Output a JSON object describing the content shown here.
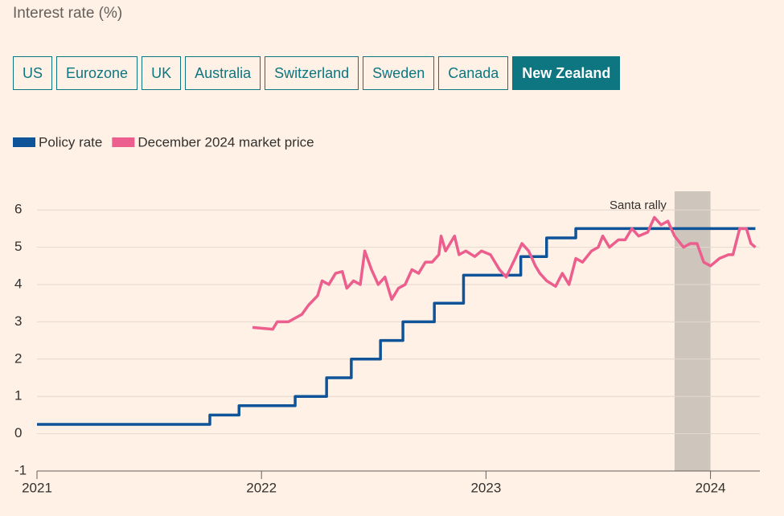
{
  "title": "Interest rate (%)",
  "tabs": {
    "items": [
      "US",
      "Eurozone",
      "UK",
      "Australia",
      "Switzerland",
      "Sweden",
      "Canada",
      "New Zealand"
    ],
    "selected": "New Zealand"
  },
  "chart_data": {
    "type": "line",
    "xlim": [
      2021,
      2024.22
    ],
    "xticks": [
      2021,
      2022,
      2023,
      2024
    ],
    "ylim": [
      -1,
      6.5
    ],
    "yticks": [
      -1,
      0,
      1,
      2,
      3,
      4,
      5,
      6
    ],
    "grid": true,
    "shaded_span": [
      2023.84,
      2024.0
    ],
    "annotation": "Santa rally",
    "series": [
      {
        "name": "Policy rate",
        "color": "#0f5499",
        "step": "post",
        "x": [
          2021,
          2021.77,
          2021.9,
          2022.15,
          2022.29,
          2022.4,
          2022.53,
          2022.63,
          2022.77,
          2022.9,
          2023.155,
          2023.27,
          2023.4,
          2024.2
        ],
        "values": [
          0.25,
          0.5,
          0.75,
          1,
          1.5,
          2,
          2.5,
          3,
          3.5,
          4.25,
          4.75,
          5.25,
          5.5,
          5.5
        ]
      },
      {
        "name": "December 2024 market price",
        "color": "#eb5e8d",
        "x": [
          2021.96,
          2022.05,
          2022.07,
          2022.12,
          2022.18,
          2022.21,
          2022.25,
          2022.27,
          2022.3,
          2022.33,
          2022.36,
          2022.38,
          2022.41,
          2022.44,
          2022.46,
          2022.49,
          2022.52,
          2022.55,
          2022.58,
          2022.61,
          2022.64,
          2022.67,
          2022.7,
          2022.73,
          2022.76,
          2022.79,
          2022.8,
          2022.82,
          2022.86,
          2022.88,
          2022.91,
          2022.95,
          2022.98,
          2023.02,
          2023.06,
          2023.09,
          2023.13,
          2023.16,
          2023.19,
          2023.22,
          2023.24,
          2023.27,
          2023.31,
          2023.34,
          2023.37,
          2023.4,
          2023.43,
          2023.47,
          2023.5,
          2023.52,
          2023.55,
          2023.59,
          2023.62,
          2023.65,
          2023.68,
          2023.72,
          2023.75,
          2023.78,
          2023.81,
          2023.84,
          2023.88,
          2023.91,
          2023.94,
          2023.97,
          2024.0,
          2024.04,
          2024.08,
          2024.1,
          2024.13,
          2024.16,
          2024.18,
          2024.2
        ],
        "values": [
          2.85,
          2.8,
          3.0,
          3.0,
          3.2,
          3.45,
          3.7,
          4.1,
          4.0,
          4.3,
          4.35,
          3.9,
          4.1,
          4.0,
          4.9,
          4.4,
          4.0,
          4.2,
          3.6,
          3.9,
          4.0,
          4.4,
          4.3,
          4.6,
          4.6,
          4.8,
          5.3,
          4.9,
          5.3,
          4.8,
          4.9,
          4.75,
          4.9,
          4.8,
          4.4,
          4.2,
          4.7,
          5.1,
          4.9,
          4.5,
          4.3,
          4.1,
          3.95,
          4.3,
          4.0,
          4.7,
          4.6,
          4.9,
          5.0,
          5.3,
          5.0,
          5.2,
          5.2,
          5.5,
          5.3,
          5.4,
          5.8,
          5.6,
          5.7,
          5.3,
          5.0,
          5.1,
          5.1,
          4.6,
          4.5,
          4.7,
          4.8,
          4.8,
          5.5,
          5.5,
          5.1,
          5.0
        ]
      }
    ]
  }
}
